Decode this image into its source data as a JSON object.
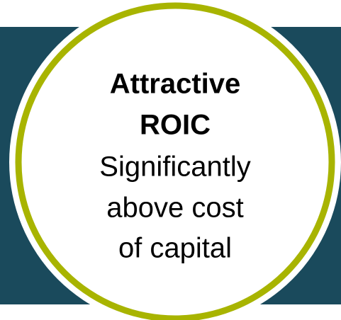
{
  "title_lines": [
    "Attractive",
    "ROIC"
  ],
  "body_lines": [
    "Significantly",
    "above cost",
    "of capital"
  ]
}
